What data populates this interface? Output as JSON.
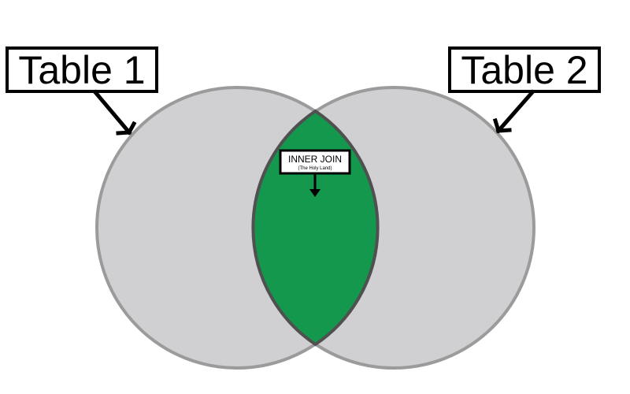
{
  "labels": {
    "left_table": "Table 1",
    "right_table": "Table 2",
    "intersection_title": "INNER JOIN",
    "intersection_subtitle": "(The Holy Land)"
  },
  "colors": {
    "circle_fill": "#d0d0d2",
    "circle_stroke": "#9b9b9b",
    "intersection_fill": "#14984d",
    "intersection_stroke": "#505050",
    "label_border": "#000000",
    "background": "#ffffff"
  }
}
